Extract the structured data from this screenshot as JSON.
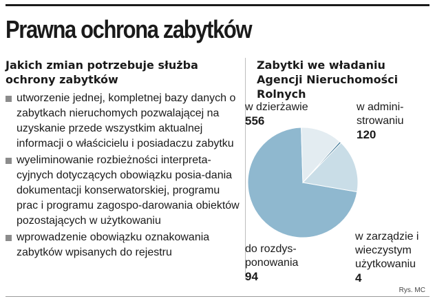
{
  "title": "Prawna ochrona zabytków",
  "left": {
    "heading": "Jakich zmian potrzebuje służba ochrony zabytków",
    "items": [
      "utworzenie jednej, kompletnej bazy danych o zabytkach nieruchomych pozwalającej na uzyskanie przede wszystkim aktualnej informacji o właścicielu i posiadaczu zabytku",
      "wyeliminowanie rozbieżności interpreta-cyjnych dotyczących obowiązku posia-dania dokumentacji konserwatorskiej, programu prac i programu zagospo-darowania obiektów pozostających w użytkowaniu",
      "wprowadzenie obowiązku oznakowania zabytków wpisanych do rejestru"
    ]
  },
  "chart_data": {
    "type": "pie",
    "title": "Zabytki we władaniu Agencji Nieruchomości Rolnych",
    "slices": [
      {
        "label": "w dzierżawie",
        "value": 556,
        "value_text": "556",
        "color": "#8fb8cf"
      },
      {
        "label": "w admini-strowaniu",
        "value": 120,
        "value_text": "120",
        "color": "#c9dde7"
      },
      {
        "label": "w zarządzie i wieczystym użytkowaniu",
        "value": 4,
        "value_text": "4",
        "color": "#4a7f9c"
      },
      {
        "label": "do rozdys-ponowania",
        "value": 94,
        "value_text": "94",
        "color": "#e3ecf1"
      }
    ]
  },
  "credit": "Rys. MC"
}
